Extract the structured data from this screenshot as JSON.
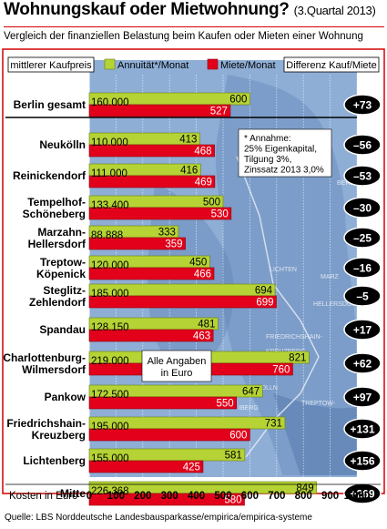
{
  "title": "Wohnungskauf oder Mietwohnung?",
  "title_suffix": "(3.Quartal  2013)",
  "subtitle": "Vergleich der finanziellen Belastung beim Kaufen oder Mieten einer Wohnung",
  "source": "Quelle: LBS Norddeutsche Landesbausparkasse/empirica/empirica-systeme",
  "colors": {
    "annuitaet": "#b5d334",
    "miete": "#e2001a",
    "diff_bg": "#000000",
    "panel": "#8eaed6",
    "frame": "#d40000"
  },
  "chart_data": {
    "type": "bar",
    "orientation": "horizontal",
    "categories": [
      "Berlin gesamt",
      "Neukölln",
      "Reinickendorf",
      "Tempelhof-Schöneberg",
      "Marzahn-Hellersdorf",
      "Treptow-Köpenick",
      "Steglitz-Zehlendorf",
      "Spandau",
      "Charlottenburg-Wilmersdorf",
      "Pankow",
      "Friedrichshain-Kreuzberg",
      "Lichtenberg",
      "Mitte"
    ],
    "category_lines": [
      [
        "Berlin gesamt"
      ],
      [
        "Neukölln"
      ],
      [
        "Reinickendorf"
      ],
      [
        "Tempelhof-",
        "Schöneberg"
      ],
      [
        "Marzahn-",
        "Hellersdorf"
      ],
      [
        "Treptow-",
        "Köpenick"
      ],
      [
        "Steglitz-",
        "Zehlendorf"
      ],
      [
        "Spandau"
      ],
      [
        "Charlottenburg-",
        "Wilmersdorf"
      ],
      [
        "Pankow"
      ],
      [
        "Friedrichshain-",
        "Kreuzberg"
      ],
      [
        "Lichtenberg"
      ],
      [
        "Mitte"
      ]
    ],
    "series": [
      {
        "name": "Annuität*/Monat",
        "values": [
          600,
          413,
          416,
          500,
          333,
          450,
          694,
          481,
          821,
          647,
          731,
          581,
          849
        ]
      },
      {
        "name": "Miete/Monat",
        "values": [
          527,
          468,
          469,
          530,
          359,
          466,
          699,
          463,
          760,
          550,
          600,
          425,
          580
        ]
      }
    ],
    "kaufpreis_header": "mittlerer Kaufpreis",
    "kaufpreis": [
      "160.000",
      "110.000",
      "111.000",
      "133.400",
      "88.888",
      "120.000",
      "185.000",
      "128.150",
      "219.000",
      "172.500",
      "195.000",
      "155.000",
      "226.368"
    ],
    "differenz_header": "Differenz Kauf/Miete",
    "differenz": [
      "+73",
      "–56",
      "–53",
      "–30",
      "–25",
      "–16",
      "–5",
      "+17",
      "+62",
      "+97",
      "+131",
      "+156",
      "+269"
    ],
    "xlabel": "Kosten in Euro",
    "xlim": [
      0,
      1000
    ],
    "xticks": [
      "0",
      "100",
      "200",
      "300",
      "400",
      "500",
      "600",
      "700",
      "800",
      "900",
      "1.000"
    ],
    "annotation": [
      "* Annahme:",
      "25% Eigenkapital,",
      "Tilgung 3%,",
      "Zinssatz 2013 3,0%"
    ],
    "note": [
      "Alle Angaben",
      "in Euro"
    ],
    "map_labels": [
      "BERL",
      "MARZ",
      "HELLERSDORF",
      "LICHTEN",
      "FRIEDRICHSHAIN-",
      "KREUZBERG",
      "WILMERSDORF",
      "KÖLLN",
      "TREPTOW-",
      "IBERG",
      "ELEN"
    ]
  }
}
